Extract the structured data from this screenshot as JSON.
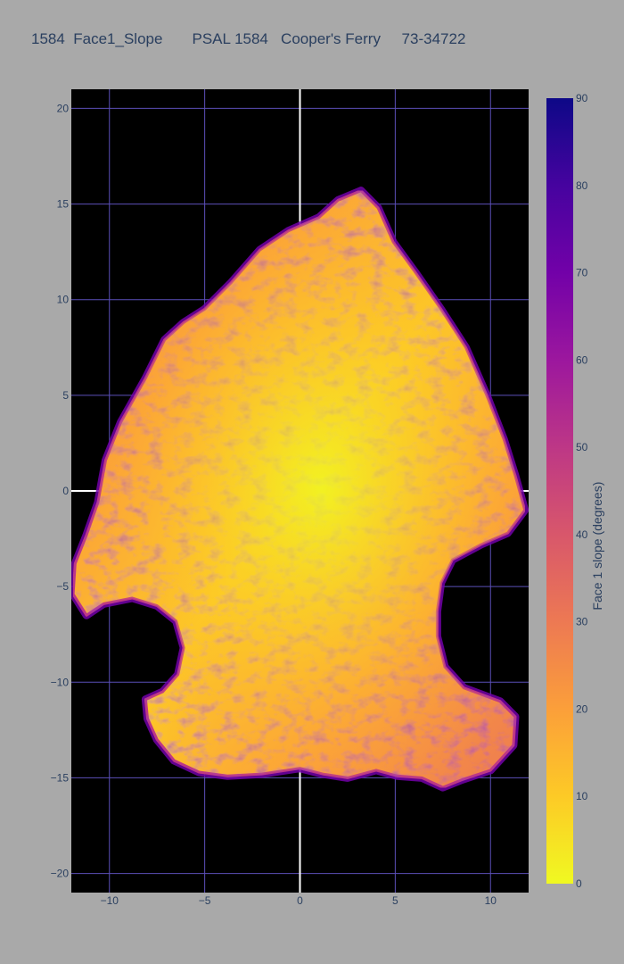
{
  "chart_data": {
    "type": "heatmap",
    "title": "1584  Face1_Slope       PSAL 1584   Cooper's Ferry     73-34722",
    "xlabel": "",
    "ylabel": "",
    "xlim": [
      -12,
      12
    ],
    "ylim": [
      -21,
      21
    ],
    "x_ticks": [
      -10,
      -5,
      0,
      5,
      10
    ],
    "y_ticks": [
      -20,
      -15,
      -10,
      -5,
      0,
      5,
      10,
      15,
      20
    ],
    "x_tick_labels": [
      "−10",
      "−5",
      "0",
      "5",
      "10"
    ],
    "y_tick_labels": [
      "−20",
      "−15",
      "−10",
      "−5",
      "0",
      "5",
      "10",
      "15",
      "20"
    ],
    "grid": true,
    "background": "#000000",
    "grid_color": "#5b4fb8",
    "zero_line_color": "#ffffff",
    "colorscale": "plasma-reversed",
    "colorbar": {
      "title": "Face 1 slope (degrees)",
      "range": [
        0,
        90
      ],
      "ticks": [
        0,
        10,
        20,
        30,
        40,
        50,
        60,
        70,
        80,
        90
      ],
      "tick_labels": [
        "0",
        "10",
        "20",
        "30",
        "40",
        "50",
        "60",
        "70",
        "80",
        "90"
      ],
      "stops": [
        "#f0f921",
        "#fdca26",
        "#fb9f3a",
        "#ed7953",
        "#d8576b",
        "#bd3786",
        "#9c179e",
        "#7201a8",
        "#46039f",
        "#0d0887"
      ]
    },
    "surface": {
      "typical_slope_range": [
        10,
        30
      ],
      "edge_slope_range": [
        50,
        80
      ],
      "outline": [
        [
          3.2,
          15.7
        ],
        [
          4.1,
          14.8
        ],
        [
          4.9,
          13.0
        ],
        [
          6.0,
          11.5
        ],
        [
          7.4,
          9.5
        ],
        [
          8.7,
          7.5
        ],
        [
          9.8,
          5.0
        ],
        [
          10.7,
          2.7
        ],
        [
          11.3,
          0.8
        ],
        [
          11.8,
          -1.0
        ],
        [
          10.9,
          -2.2
        ],
        [
          9.5,
          -2.8
        ],
        [
          8.0,
          -3.6
        ],
        [
          7.4,
          -4.8
        ],
        [
          7.2,
          -6.3
        ],
        [
          7.2,
          -7.6
        ],
        [
          7.6,
          -9.2
        ],
        [
          8.6,
          -10.3
        ],
        [
          10.5,
          -11.0
        ],
        [
          11.3,
          -11.8
        ],
        [
          11.2,
          -13.3
        ],
        [
          10.0,
          -14.6
        ],
        [
          8.5,
          -15.1
        ],
        [
          7.5,
          -15.5
        ],
        [
          6.4,
          -15.0
        ],
        [
          5.1,
          -14.9
        ],
        [
          4.0,
          -14.6
        ],
        [
          2.5,
          -15.0
        ],
        [
          1.2,
          -14.8
        ],
        [
          0.0,
          -14.5
        ],
        [
          -2.0,
          -14.8
        ],
        [
          -3.8,
          -14.9
        ],
        [
          -5.3,
          -14.7
        ],
        [
          -6.6,
          -14.1
        ],
        [
          -7.5,
          -13.0
        ],
        [
          -8.0,
          -11.9
        ],
        [
          -8.1,
          -10.9
        ],
        [
          -7.2,
          -10.5
        ],
        [
          -6.4,
          -9.6
        ],
        [
          -6.1,
          -8.2
        ],
        [
          -6.5,
          -6.8
        ],
        [
          -7.5,
          -6.0
        ],
        [
          -8.8,
          -5.6
        ],
        [
          -10.3,
          -5.9
        ],
        [
          -11.2,
          -6.5
        ],
        [
          -11.9,
          -5.4
        ],
        [
          -11.8,
          -3.8
        ],
        [
          -11.2,
          -2.3
        ],
        [
          -10.6,
          -0.6
        ],
        [
          -10.2,
          1.6
        ],
        [
          -9.4,
          3.6
        ],
        [
          -8.1,
          5.9
        ],
        [
          -7.1,
          7.9
        ],
        [
          -6.1,
          8.8
        ],
        [
          -5.0,
          9.5
        ],
        [
          -3.6,
          10.9
        ],
        [
          -2.1,
          12.6
        ],
        [
          -0.6,
          13.6
        ],
        [
          1.0,
          14.3
        ],
        [
          2.0,
          15.2
        ]
      ]
    }
  }
}
